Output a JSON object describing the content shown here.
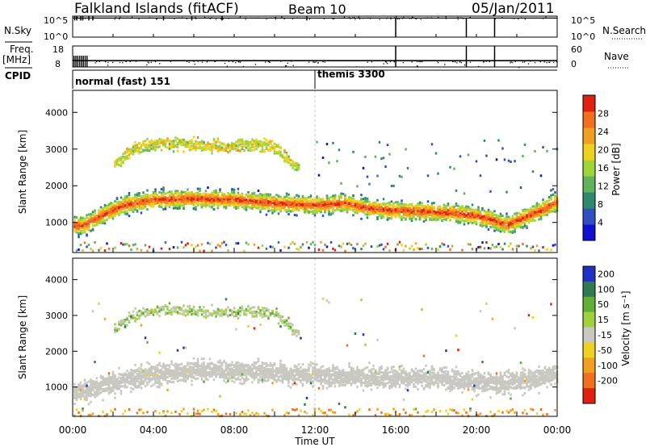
{
  "header": {
    "station": "Falkland Islands (fitACF)",
    "beam": "Beam 10",
    "date": "05/Jan/2011"
  },
  "chart_data": [
    {
      "type": "line",
      "panel": "noise",
      "left_label": "N.Sky",
      "right_label": "N.Search",
      "left_ticks": [
        "10^5",
        "10^0"
      ],
      "right_ticks": [
        "10^5",
        "10^0"
      ],
      "scale": "log",
      "xlim": [
        0,
        24
      ],
      "series_sky": {
        "baseline_level": 5.0,
        "spikes": [
          0.1,
          0.2,
          0.4,
          0.5,
          0.8,
          1.0,
          4.5,
          5.9,
          7.4,
          11.6
        ]
      },
      "series_search_drops": [
        16.0,
        19.5,
        20.9
      ],
      "tick_marks_hours": [
        0,
        2,
        4,
        6,
        8,
        10,
        12,
        14,
        16,
        18,
        20,
        22,
        24
      ]
    },
    {
      "type": "scatter",
      "panel": "frequency",
      "left_label": "Freq.",
      "left_unit": "[MHz]",
      "right_label": "Nave",
      "left_ticks": [
        "18",
        "8"
      ],
      "right_ticks": [
        "60",
        "0"
      ],
      "freq_level_mhz": 11,
      "nave_level": 30,
      "freq_drops_hours": [
        16.0,
        19.5,
        20.9
      ],
      "xlim": [
        0,
        24
      ]
    },
    {
      "type": "table",
      "panel": "cpid",
      "label": "CPID",
      "modes": [
        {
          "name": "normal (fast) 151",
          "start_hour": 0
        },
        {
          "name": "themis 3300",
          "start_hour": 12
        }
      ]
    },
    {
      "type": "heatmap",
      "panel": "power",
      "ylabel": "Slant Range [km]",
      "xlabel": "",
      "ylim": [
        180,
        4600
      ],
      "yticks": [
        1000,
        2000,
        3000,
        4000
      ],
      "xlim": [
        0,
        24
      ],
      "colorbar": {
        "label": "Power [dB]",
        "ticks": [
          4,
          8,
          12,
          16,
          20,
          24,
          28
        ],
        "range": [
          0,
          32
        ],
        "colors": [
          "#1010d0",
          "#3050c0",
          "#2e8a6e",
          "#5fb35a",
          "#9ed63a",
          "#f0d020",
          "#f0a020",
          "#f07020",
          "#e02010"
        ]
      },
      "bands": [
        {
          "name": "main echo band",
          "points": [
            [
              0.5,
              950
            ],
            [
              1.5,
              1250
            ],
            [
              2.5,
              1500
            ],
            [
              4,
              1650
            ],
            [
              6,
              1680
            ],
            [
              8,
              1650
            ],
            [
              10,
              1550
            ],
            [
              12,
              1500
            ],
            [
              13.5,
              1550
            ],
            [
              14.5,
              1420
            ],
            [
              16,
              1350
            ],
            [
              17.5,
              1330
            ],
            [
              19,
              1280
            ],
            [
              20.5,
              1150
            ],
            [
              21.5,
              950
            ],
            [
              22.5,
              1200
            ],
            [
              23.5,
              1450
            ],
            [
              24,
              1600
            ]
          ],
          "width_km": 350
        },
        {
          "name": "upper patches",
          "points": [
            [
              2,
              2600
            ],
            [
              3,
              3050
            ],
            [
              4.5,
              3200
            ],
            [
              6,
              3150
            ],
            [
              7.5,
              3100
            ],
            [
              9,
              3150
            ],
            [
              10,
              3100
            ],
            [
              11,
              2550
            ]
          ],
          "width_km": 250
        }
      ]
    },
    {
      "type": "heatmap",
      "panel": "velocity",
      "ylabel": "Slant Range [km]",
      "xlabel": "Time UT",
      "ylim": [
        180,
        4600
      ],
      "yticks": [
        1000,
        2000,
        3000,
        4000
      ],
      "xlim": [
        0,
        24
      ],
      "xticks": [
        "00:00",
        "04:00",
        "08:00",
        "12:00",
        "16:00",
        "20:00",
        "00:00"
      ],
      "colorbar": {
        "label": "Velocity [m s⁻¹]",
        "ticks": [
          "200",
          "100",
          "50",
          "15",
          "-15",
          "-50",
          "-100",
          "-200"
        ],
        "colors": [
          "#2030c0",
          "#2f7a50",
          "#5fb035",
          "#9fd040",
          "#c8c8c0",
          "#f0d020",
          "#f0a020",
          "#f07020",
          "#e02010"
        ]
      },
      "ground_scatter_band": {
        "points": [
          [
            0.5,
            900
          ],
          [
            3,
            1300
          ],
          [
            6,
            1500
          ],
          [
            9,
            1450
          ],
          [
            12,
            1350
          ],
          [
            15,
            1300
          ],
          [
            18,
            1300
          ],
          [
            21,
            1100
          ],
          [
            24,
            1400
          ]
        ],
        "width_km": 700
      }
    }
  ]
}
